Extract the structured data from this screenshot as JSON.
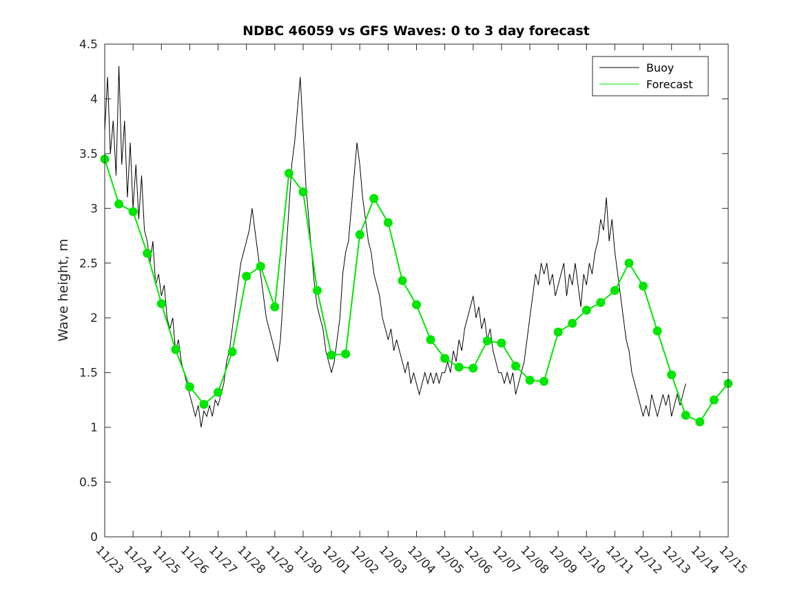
{
  "chart_data": {
    "type": "line",
    "title": "NDBC 46059 vs GFS Waves: 0 to 3 day forecast",
    "xlabel": "",
    "ylabel": "Wave height, m",
    "ylim": [
      0,
      4.5
    ],
    "yticks": [
      "0",
      "0.5",
      "1",
      "1.5",
      "2",
      "2.5",
      "3",
      "3.5",
      "4",
      "4.5"
    ],
    "xlim": [
      0,
      22
    ],
    "xticks": [
      "11/23",
      "11/24",
      "11/25",
      "11/26",
      "11/27",
      "11/28",
      "11/29",
      "11/30",
      "12/01",
      "12/02",
      "12/03",
      "12/04",
      "12/05",
      "12/06",
      "12/07",
      "12/08",
      "12/09",
      "12/10",
      "12/11",
      "12/12",
      "12/13",
      "12/14",
      "12/15"
    ],
    "legend": {
      "location": "top-right",
      "entries": [
        {
          "name": "Buoy",
          "color": "#000000"
        },
        {
          "name": "Forecast",
          "color": "#00e600"
        }
      ]
    },
    "series": [
      {
        "name": "Buoy",
        "color": "#000000",
        "points": [
          [
            0.0,
            3.7
          ],
          [
            0.1,
            4.2
          ],
          [
            0.2,
            3.5
          ],
          [
            0.3,
            3.8
          ],
          [
            0.4,
            3.3
          ],
          [
            0.5,
            4.3
          ],
          [
            0.6,
            3.4
          ],
          [
            0.7,
            3.8
          ],
          [
            0.8,
            3.1
          ],
          [
            0.9,
            3.6
          ],
          [
            1.0,
            3.0
          ],
          [
            1.1,
            3.4
          ],
          [
            1.2,
            2.9
          ],
          [
            1.3,
            3.3
          ],
          [
            1.4,
            2.8
          ],
          [
            1.5,
            2.7
          ],
          [
            1.6,
            2.5
          ],
          [
            1.7,
            2.7
          ],
          [
            1.8,
            2.3
          ],
          [
            1.9,
            2.4
          ],
          [
            2.0,
            2.2
          ],
          [
            2.1,
            2.3
          ],
          [
            2.2,
            2.0
          ],
          [
            2.3,
            1.9
          ],
          [
            2.4,
            2.0
          ],
          [
            2.5,
            1.7
          ],
          [
            2.6,
            1.8
          ],
          [
            2.7,
            1.6
          ],
          [
            2.8,
            1.5
          ],
          [
            2.9,
            1.4
          ],
          [
            3.0,
            1.3
          ],
          [
            3.1,
            1.2
          ],
          [
            3.2,
            1.1
          ],
          [
            3.3,
            1.2
          ],
          [
            3.4,
            1.0
          ],
          [
            3.5,
            1.15
          ],
          [
            3.6,
            1.1
          ],
          [
            3.7,
            1.2
          ],
          [
            3.8,
            1.1
          ],
          [
            3.9,
            1.25
          ],
          [
            4.0,
            1.2
          ],
          [
            4.1,
            1.3
          ],
          [
            4.2,
            1.4
          ],
          [
            4.3,
            1.6
          ],
          [
            4.4,
            1.7
          ],
          [
            4.5,
            1.9
          ],
          [
            4.6,
            2.1
          ],
          [
            4.7,
            2.3
          ],
          [
            4.8,
            2.5
          ],
          [
            4.9,
            2.6
          ],
          [
            5.0,
            2.7
          ],
          [
            5.1,
            2.8
          ],
          [
            5.2,
            3.0
          ],
          [
            5.3,
            2.8
          ],
          [
            5.4,
            2.6
          ],
          [
            5.5,
            2.4
          ],
          [
            5.6,
            2.2
          ],
          [
            5.7,
            2.0
          ],
          [
            5.8,
            1.9
          ],
          [
            5.9,
            1.8
          ],
          [
            6.0,
            1.7
          ],
          [
            6.1,
            1.6
          ],
          [
            6.2,
            1.8
          ],
          [
            6.3,
            2.2
          ],
          [
            6.4,
            2.6
          ],
          [
            6.5,
            3.0
          ],
          [
            6.6,
            3.4
          ],
          [
            6.7,
            3.6
          ],
          [
            6.8,
            3.9
          ],
          [
            6.9,
            4.2
          ],
          [
            7.0,
            3.7
          ],
          [
            7.1,
            3.2
          ],
          [
            7.2,
            2.9
          ],
          [
            7.3,
            2.6
          ],
          [
            7.4,
            2.3
          ],
          [
            7.5,
            2.1
          ],
          [
            7.6,
            2.0
          ],
          [
            7.7,
            1.9
          ],
          [
            7.8,
            1.7
          ],
          [
            7.9,
            1.6
          ],
          [
            8.0,
            1.5
          ],
          [
            8.1,
            1.6
          ],
          [
            8.2,
            1.8
          ],
          [
            8.3,
            2.0
          ],
          [
            8.4,
            2.4
          ],
          [
            8.5,
            2.6
          ],
          [
            8.6,
            2.7
          ],
          [
            8.7,
            3.0
          ],
          [
            8.8,
            3.3
          ],
          [
            8.9,
            3.6
          ],
          [
            9.0,
            3.4
          ],
          [
            9.1,
            3.1
          ],
          [
            9.2,
            2.9
          ],
          [
            9.3,
            2.7
          ],
          [
            9.4,
            2.6
          ],
          [
            9.5,
            2.4
          ],
          [
            9.6,
            2.3
          ],
          [
            9.7,
            2.2
          ],
          [
            9.8,
            2.0
          ],
          [
            9.9,
            1.9
          ],
          [
            10.0,
            1.8
          ],
          [
            10.1,
            1.9
          ],
          [
            10.2,
            1.7
          ],
          [
            10.3,
            1.8
          ],
          [
            10.4,
            1.7
          ],
          [
            10.5,
            1.6
          ],
          [
            10.6,
            1.5
          ],
          [
            10.7,
            1.6
          ],
          [
            10.8,
            1.4
          ],
          [
            10.9,
            1.5
          ],
          [
            11.0,
            1.4
          ],
          [
            11.1,
            1.3
          ],
          [
            11.2,
            1.4
          ],
          [
            11.3,
            1.5
          ],
          [
            11.4,
            1.4
          ],
          [
            11.5,
            1.5
          ],
          [
            11.6,
            1.4
          ],
          [
            11.7,
            1.5
          ],
          [
            11.8,
            1.4
          ],
          [
            11.9,
            1.5
          ],
          [
            12.0,
            1.5
          ],
          [
            12.1,
            1.6
          ],
          [
            12.2,
            1.5
          ],
          [
            12.3,
            1.7
          ],
          [
            12.4,
            1.6
          ],
          [
            12.5,
            1.8
          ],
          [
            12.6,
            1.7
          ],
          [
            12.7,
            1.9
          ],
          [
            12.8,
            2.0
          ],
          [
            12.9,
            2.1
          ],
          [
            13.0,
            2.2
          ],
          [
            13.1,
            2.0
          ],
          [
            13.2,
            2.1
          ],
          [
            13.3,
            1.9
          ],
          [
            13.4,
            2.0
          ],
          [
            13.5,
            1.8
          ],
          [
            13.6,
            1.9
          ],
          [
            13.7,
            1.7
          ],
          [
            13.8,
            1.6
          ],
          [
            13.9,
            1.5
          ],
          [
            14.0,
            1.5
          ],
          [
            14.1,
            1.4
          ],
          [
            14.2,
            1.5
          ],
          [
            14.3,
            1.4
          ],
          [
            14.4,
            1.5
          ],
          [
            14.5,
            1.3
          ],
          [
            14.6,
            1.4
          ],
          [
            14.7,
            1.5
          ],
          [
            14.8,
            1.6
          ],
          [
            14.9,
            1.8
          ],
          [
            15.0,
            2.0
          ],
          [
            15.1,
            2.2
          ],
          [
            15.2,
            2.4
          ],
          [
            15.3,
            2.3
          ],
          [
            15.4,
            2.5
          ],
          [
            15.5,
            2.4
          ],
          [
            15.6,
            2.5
          ],
          [
            15.7,
            2.3
          ],
          [
            15.8,
            2.4
          ],
          [
            15.9,
            2.2
          ],
          [
            16.0,
            2.3
          ],
          [
            16.1,
            2.4
          ],
          [
            16.2,
            2.5
          ],
          [
            16.3,
            2.2
          ],
          [
            16.4,
            2.4
          ],
          [
            16.5,
            2.3
          ],
          [
            16.6,
            2.5
          ],
          [
            16.7,
            2.3
          ],
          [
            16.8,
            2.1
          ],
          [
            16.9,
            2.4
          ],
          [
            17.0,
            2.3
          ],
          [
            17.1,
            2.5
          ],
          [
            17.2,
            2.4
          ],
          [
            17.3,
            2.6
          ],
          [
            17.4,
            2.7
          ],
          [
            17.5,
            2.9
          ],
          [
            17.6,
            2.8
          ],
          [
            17.7,
            3.1
          ],
          [
            17.8,
            2.7
          ],
          [
            17.9,
            2.9
          ],
          [
            18.0,
            2.6
          ],
          [
            18.1,
            2.4
          ],
          [
            18.2,
            2.2
          ],
          [
            18.3,
            2.0
          ],
          [
            18.4,
            1.8
          ],
          [
            18.5,
            1.7
          ],
          [
            18.6,
            1.5
          ],
          [
            18.7,
            1.4
          ],
          [
            18.8,
            1.3
          ],
          [
            18.9,
            1.2
          ],
          [
            19.0,
            1.1
          ],
          [
            19.1,
            1.2
          ],
          [
            19.2,
            1.1
          ],
          [
            19.3,
            1.3
          ],
          [
            19.4,
            1.2
          ],
          [
            19.5,
            1.1
          ],
          [
            19.6,
            1.2
          ],
          [
            19.7,
            1.3
          ],
          [
            19.8,
            1.2
          ],
          [
            19.9,
            1.3
          ],
          [
            20.0,
            1.1
          ],
          [
            20.1,
            1.2
          ],
          [
            20.2,
            1.3
          ],
          [
            20.3,
            1.2
          ],
          [
            20.4,
            1.3
          ],
          [
            20.5,
            1.4
          ]
        ]
      },
      {
        "name": "Forecast",
        "color": "#00e600",
        "points": [
          [
            0.0,
            3.45
          ],
          [
            0.5,
            3.04
          ],
          [
            1.0,
            2.97
          ],
          [
            1.5,
            2.59
          ],
          [
            2.0,
            2.13
          ],
          [
            2.5,
            1.71
          ],
          [
            3.0,
            1.37
          ],
          [
            3.5,
            1.21
          ],
          [
            4.0,
            1.32
          ],
          [
            4.5,
            1.69
          ],
          [
            5.0,
            2.38
          ],
          [
            5.5,
            2.47
          ],
          [
            6.0,
            2.1
          ],
          [
            6.5,
            3.32
          ],
          [
            7.0,
            3.15
          ],
          [
            7.5,
            2.25
          ],
          [
            8.0,
            1.66
          ],
          [
            8.5,
            1.67
          ],
          [
            9.0,
            2.76
          ],
          [
            9.5,
            3.09
          ],
          [
            10.0,
            2.87
          ],
          [
            10.5,
            2.34
          ],
          [
            11.0,
            2.12
          ],
          [
            11.5,
            1.8
          ],
          [
            12.0,
            1.63
          ],
          [
            12.5,
            1.55
          ],
          [
            13.0,
            1.54
          ],
          [
            13.5,
            1.79
          ],
          [
            14.0,
            1.77
          ],
          [
            14.5,
            1.56
          ],
          [
            15.0,
            1.43
          ],
          [
            15.5,
            1.42
          ],
          [
            16.0,
            1.87
          ],
          [
            16.5,
            1.95
          ],
          [
            17.0,
            2.07
          ],
          [
            17.5,
            2.14
          ],
          [
            18.0,
            2.25
          ],
          [
            18.5,
            2.5
          ],
          [
            19.0,
            2.29
          ],
          [
            19.5,
            1.88
          ],
          [
            20.0,
            1.48
          ],
          [
            20.5,
            1.11
          ],
          [
            21.0,
            1.05
          ],
          [
            21.5,
            1.25
          ],
          [
            22.0,
            1.4
          ]
        ]
      }
    ]
  }
}
